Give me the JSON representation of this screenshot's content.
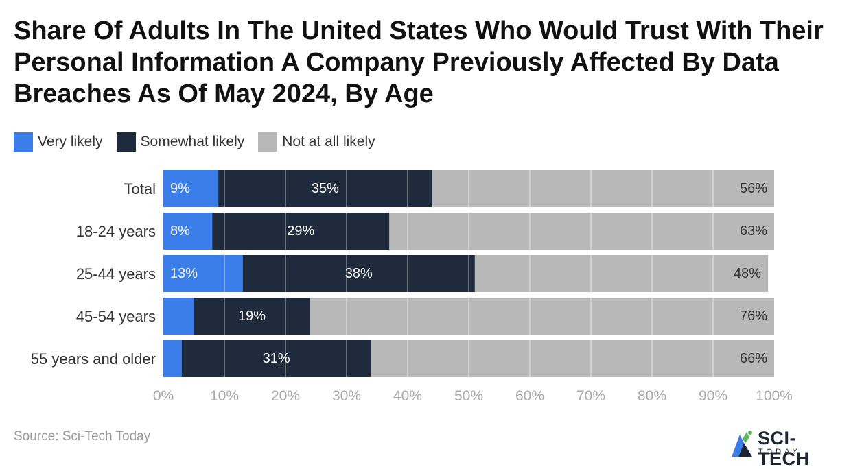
{
  "chart_data": {
    "type": "bar",
    "orientation": "horizontal",
    "stacked": true,
    "title": "Share Of Adults In The United States Who Would Trust With Their Personal Information A Company Previously Affected By Data Breaches As Of May 2024, By Age",
    "categories": [
      "Total",
      "18-24 years",
      "25-44 years",
      "45-54 years",
      "55 years and older"
    ],
    "series": [
      {
        "name": "Very likely",
        "color": "#3b7de9",
        "values": [
          9,
          8,
          13,
          5,
          3
        ],
        "labels": [
          "9%",
          "8%",
          "13%",
          "",
          ""
        ]
      },
      {
        "name": "Somewhat likely",
        "color": "#1f2a3c",
        "values": [
          35,
          29,
          38,
          19,
          31
        ],
        "labels": [
          "35%",
          "29%",
          "38%",
          "19%",
          "31%"
        ]
      },
      {
        "name": "Not at all likely",
        "color": "#b8b8b8",
        "values": [
          56,
          63,
          48,
          76,
          66
        ],
        "labels": [
          "56%",
          "63%",
          "48%",
          "76%",
          "66%"
        ]
      }
    ],
    "xlim": [
      0,
      100
    ],
    "xticks": [
      "0%",
      "10%",
      "20%",
      "30%",
      "40%",
      "50%",
      "60%",
      "70%",
      "80%",
      "90%",
      "100%"
    ],
    "grid": true,
    "legend": "top-left"
  },
  "source": "Source: Sci-Tech Today",
  "logo": {
    "text": "SCI-TECH",
    "subtext": "TODAY",
    "colors": [
      "#1c2533",
      "#3b7de9",
      "#5bb85b"
    ]
  }
}
